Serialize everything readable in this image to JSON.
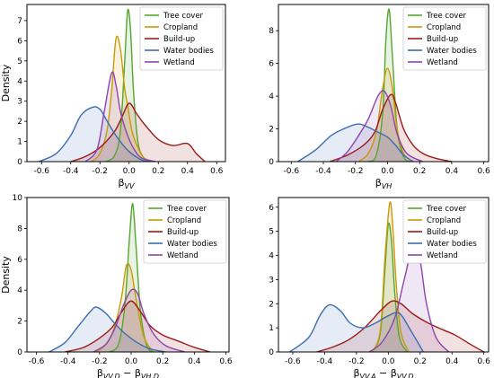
{
  "chart_data": [
    {
      "type": "area",
      "panel": "top-left",
      "xlabel": "β",
      "xlabel_sub": "VV",
      "ylabel": "Density",
      "xlim": [
        -0.7,
        0.66
      ],
      "ylim": [
        0,
        7.8
      ],
      "xticks": [
        "-0.6",
        "-0.4",
        "-0.2",
        "0.0",
        "0.2",
        "0.4",
        "0.6"
      ],
      "yticks": [
        "0",
        "1",
        "2",
        "3",
        "4",
        "5",
        "6",
        "7"
      ],
      "legend_position": "top-right",
      "series": [
        {
          "name": "Tree cover",
          "color": "#55a630",
          "x": [
            -0.16,
            -0.1,
            -0.06,
            -0.03,
            -0.01,
            0.01,
            0.03,
            0.06,
            0.1,
            0.16
          ],
          "y": [
            0,
            0.3,
            1.5,
            5.0,
            7.5,
            6.5,
            3.5,
            1.0,
            0.2,
            0
          ]
        },
        {
          "name": "Cropland",
          "color": "#c99a06",
          "x": [
            -0.26,
            -0.2,
            -0.15,
            -0.12,
            -0.09,
            -0.06,
            -0.03,
            -0.01,
            0.02,
            0.06,
            0.1,
            0.16
          ],
          "y": [
            0,
            0.4,
            1.6,
            3.5,
            6.1,
            5.6,
            3.6,
            2.8,
            1.5,
            0.7,
            0.2,
            0
          ]
        },
        {
          "name": "Build-up",
          "color": "#9c1a1a",
          "x": [
            -0.4,
            -0.3,
            -0.2,
            -0.1,
            -0.05,
            0,
            0.05,
            0.1,
            0.2,
            0.3,
            0.4,
            0.46,
            0.52
          ],
          "y": [
            0,
            0.25,
            0.7,
            1.5,
            2.2,
            2.9,
            2.4,
            1.9,
            1.1,
            0.8,
            0.9,
            0.4,
            0
          ]
        },
        {
          "name": "Water bodies",
          "color": "#3b6db0",
          "x": [
            -0.62,
            -0.5,
            -0.4,
            -0.33,
            -0.25,
            -0.2,
            -0.15,
            -0.1,
            -0.05,
            0,
            0.08,
            0.14
          ],
          "y": [
            0,
            0.4,
            1.3,
            2.3,
            2.7,
            2.6,
            2.0,
            1.4,
            0.9,
            0.5,
            0.1,
            0
          ]
        },
        {
          "name": "Wetland",
          "color": "#8e44ad",
          "x": [
            -0.3,
            -0.22,
            -0.17,
            -0.12,
            -0.09,
            -0.06,
            -0.02,
            0.02,
            0.08,
            0.18
          ],
          "y": [
            0,
            0.6,
            2.5,
            4.4,
            3.8,
            2.5,
            1.5,
            0.8,
            0.2,
            0
          ]
        }
      ]
    },
    {
      "type": "area",
      "panel": "top-right",
      "xlabel": "β",
      "xlabel_sub": "VH",
      "ylabel": "",
      "xlim": [
        -0.68,
        0.63
      ],
      "ylim": [
        0,
        9.6
      ],
      "xticks": [
        "-0.6",
        "-0.4",
        "-0.2",
        "0.0",
        "0.2",
        "0.4",
        "0.6"
      ],
      "yticks": [
        "0",
        "2",
        "4",
        "6",
        "8"
      ],
      "legend_position": "top-right",
      "series": [
        {
          "name": "Tree cover",
          "color": "#55a630",
          "x": [
            -0.12,
            -0.07,
            -0.03,
            -0.01,
            0.01,
            0.03,
            0.06,
            0.1,
            0.14
          ],
          "y": [
            0,
            0.4,
            3.0,
            7.5,
            9.3,
            6.5,
            2.0,
            0.3,
            0
          ]
        },
        {
          "name": "Cropland",
          "color": "#c99a06",
          "x": [
            -0.18,
            -0.12,
            -0.07,
            -0.03,
            0,
            0.03,
            0.06,
            0.1,
            0.16
          ],
          "y": [
            0,
            0.5,
            1.8,
            4.5,
            5.7,
            4.5,
            2.0,
            0.5,
            0
          ]
        },
        {
          "name": "Build-up",
          "color": "#9c1a1a",
          "x": [
            -0.36,
            -0.25,
            -0.15,
            -0.08,
            -0.03,
            0.02,
            0.05,
            0.1,
            0.16,
            0.22,
            0.3,
            0.4
          ],
          "y": [
            0,
            0.4,
            1.0,
            1.8,
            3.2,
            4.1,
            3.6,
            2.0,
            1.0,
            0.5,
            0.2,
            0
          ]
        },
        {
          "name": "Water bodies",
          "color": "#3b6db0",
          "x": [
            -0.56,
            -0.45,
            -0.35,
            -0.25,
            -0.18,
            -0.12,
            -0.06,
            0,
            0.05,
            0.1,
            0.16
          ],
          "y": [
            0,
            0.7,
            1.6,
            2.1,
            2.3,
            2.1,
            1.8,
            1.5,
            1.0,
            0.4,
            0
          ]
        },
        {
          "name": "Wetland",
          "color": "#8e44ad",
          "x": [
            -0.32,
            -0.25,
            -0.18,
            -0.12,
            -0.06,
            -0.02,
            0.02,
            0.06,
            0.12,
            0.22
          ],
          "y": [
            0,
            0.6,
            1.6,
            2.6,
            4.0,
            4.3,
            3.4,
            1.7,
            0.5,
            0
          ]
        }
      ]
    },
    {
      "type": "area",
      "panel": "bottom-left",
      "xlabel": "β",
      "xlabel_sub": "VV,D",
      "xlabel_mid": " − β",
      "xlabel_sub2": "VH,D",
      "ylabel": "Density",
      "xlim": [
        -0.66,
        0.62
      ],
      "ylim": [
        0,
        10
      ],
      "xticks": [
        "-0.6",
        "-0.4",
        "-0.2",
        "0.0",
        "0.2",
        "0.4",
        "0.6"
      ],
      "yticks": [
        "0",
        "2",
        "4",
        "6",
        "8",
        "10"
      ],
      "legend_position": "top-right",
      "series": [
        {
          "name": "Tree cover",
          "color": "#55a630",
          "x": [
            -0.14,
            -0.08,
            -0.04,
            -0.01,
            0.01,
            0.03,
            0.06,
            0.1,
            0.14
          ],
          "y": [
            0,
            0.5,
            3.0,
            7.5,
            9.6,
            7.0,
            2.5,
            0.4,
            0
          ]
        },
        {
          "name": "Cropland",
          "color": "#c99a06",
          "x": [
            -0.22,
            -0.15,
            -0.1,
            -0.06,
            -0.03,
            0,
            0.03,
            0.08,
            0.14
          ],
          "y": [
            0,
            0.6,
            1.8,
            3.6,
            5.6,
            5.3,
            3.5,
            1.0,
            0
          ]
        },
        {
          "name": "Build-up",
          "color": "#9c1a1a",
          "x": [
            -0.42,
            -0.3,
            -0.2,
            -0.12,
            -0.06,
            0,
            0.06,
            0.12,
            0.2,
            0.3,
            0.4,
            0.5
          ],
          "y": [
            0,
            0.3,
            0.9,
            1.6,
            2.6,
            3.3,
            2.6,
            1.7,
            1.1,
            0.7,
            0.3,
            0
          ]
        },
        {
          "name": "Water bodies",
          "color": "#3b6db0",
          "x": [
            -0.52,
            -0.42,
            -0.34,
            -0.26,
            -0.22,
            -0.16,
            -0.1,
            -0.04,
            0.04,
            0.12,
            0.22
          ],
          "y": [
            0,
            0.6,
            1.6,
            2.6,
            2.9,
            2.5,
            1.8,
            1.2,
            0.6,
            0.2,
            0
          ]
        },
        {
          "name": "Wetland",
          "color": "#8e44ad",
          "x": [
            -0.24,
            -0.16,
            -0.1,
            -0.05,
            0,
            0.04,
            0.08,
            0.14,
            0.22,
            0.34
          ],
          "y": [
            0,
            0.5,
            1.6,
            3.0,
            4.0,
            3.8,
            2.5,
            1.2,
            0.4,
            0
          ]
        }
      ]
    },
    {
      "type": "area",
      "panel": "bottom-right",
      "xlabel": "β",
      "xlabel_sub": "VV,A",
      "xlabel_mid": " − β",
      "xlabel_sub2": "VV,D",
      "ylabel": "",
      "xlim": [
        -0.69,
        0.63
      ],
      "ylim": [
        0,
        6.4
      ],
      "xticks": [
        "-0.6",
        "-0.4",
        "-0.2",
        "0.0",
        "0.2",
        "0.4",
        "0.6"
      ],
      "yticks": [
        "0",
        "1",
        "2",
        "3",
        "4",
        "5",
        "6"
      ],
      "legend_position": "top-right",
      "series": [
        {
          "name": "Tree cover",
          "color": "#55a630",
          "x": [
            -0.1,
            -0.05,
            -0.02,
            0,
            0.02,
            0.04,
            0.07,
            0.12
          ],
          "y": [
            0,
            0.8,
            3.5,
            5.3,
            4.6,
            2.5,
            0.6,
            0
          ]
        },
        {
          "name": "Cropland",
          "color": "#c99a06",
          "x": [
            -0.1,
            -0.05,
            -0.02,
            0.01,
            0.03,
            0.05,
            0.08,
            0.13
          ],
          "y": [
            0,
            0.9,
            4.0,
            6.2,
            5.0,
            2.8,
            0.8,
            0
          ]
        },
        {
          "name": "Build-up",
          "color": "#9c1a1a",
          "x": [
            -0.45,
            -0.35,
            -0.25,
            -0.15,
            -0.05,
            0.02,
            0.08,
            0.15,
            0.25,
            0.35,
            0.42,
            0.52,
            0.6
          ],
          "y": [
            0,
            0.2,
            0.5,
            1.0,
            1.7,
            2.1,
            2.0,
            1.6,
            1.2,
            0.9,
            0.7,
            0.3,
            0
          ]
        },
        {
          "name": "Water bodies",
          "color": "#3b6db0",
          "x": [
            -0.62,
            -0.5,
            -0.43,
            -0.37,
            -0.3,
            -0.24,
            -0.16,
            -0.08,
            0,
            0.07,
            0.14,
            0.22
          ],
          "y": [
            0,
            0.6,
            1.5,
            1.95,
            1.7,
            1.2,
            1.0,
            1.2,
            1.5,
            1.6,
            0.9,
            0
          ]
        },
        {
          "name": "Wetland",
          "color": "#8e44ad",
          "x": [
            -0.12,
            -0.04,
            0.04,
            0.1,
            0.16,
            0.2,
            0.24,
            0.3,
            0.38
          ],
          "y": [
            0,
            0.4,
            1.4,
            3.0,
            4.5,
            3.8,
            2.0,
            0.6,
            0
          ]
        }
      ]
    }
  ]
}
